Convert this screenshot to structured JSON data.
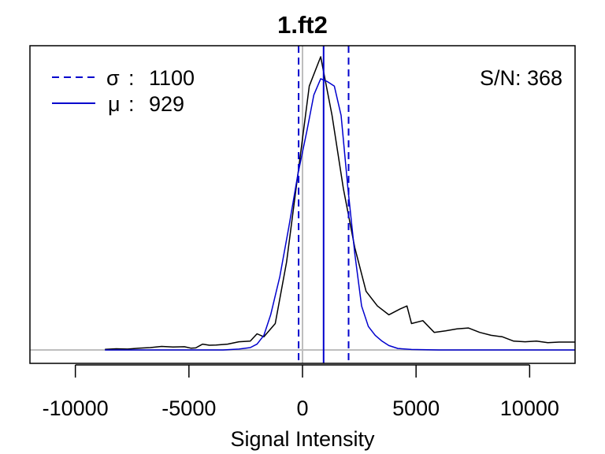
{
  "chart_data": {
    "type": "line",
    "title": "1.ft2",
    "xlabel": "Signal Intensity",
    "ylabel": "",
    "xlim": [
      -12000,
      12000
    ],
    "ylim": [
      -0.03,
      1.0
    ],
    "xticks": [
      -10000,
      -5000,
      0,
      5000,
      10000
    ],
    "xtick_labels": [
      "-10000",
      "-5000",
      "0",
      "5000",
      "10000"
    ],
    "yaxis_drawn": false,
    "grid": false,
    "colors": {
      "density": "#000000",
      "fit": "#0000cd",
      "markers": "#0000cd",
      "zero_line": "#bebebe"
    },
    "series": [
      {
        "color": "#000000",
        "x": [
          -8700,
          -8200,
          -7700,
          -7200,
          -6700,
          -6200,
          -5700,
          -5200,
          -4900,
          -4700,
          -4400,
          -4100,
          -3800,
          -3300,
          -2800,
          -2300,
          -2000,
          -1700,
          -1200,
          -700,
          -200,
          300,
          800,
          1300,
          1800,
          2300,
          2800,
          3300,
          3800,
          4300,
          4600,
          4800,
          5300,
          5800,
          6300,
          6800,
          7300,
          7800,
          8300,
          8800,
          9300,
          9800,
          10300,
          10800,
          11300,
          12000
        ],
        "y": [
          0.002,
          0.004,
          0.003,
          0.006,
          0.008,
          0.012,
          0.01,
          0.011,
          0.006,
          0.007,
          0.02,
          0.016,
          0.017,
          0.02,
          0.028,
          0.03,
          0.055,
          0.045,
          0.09,
          0.3,
          0.6,
          0.9,
          1.0,
          0.8,
          0.55,
          0.35,
          0.2,
          0.15,
          0.12,
          0.14,
          0.15,
          0.09,
          0.1,
          0.06,
          0.065,
          0.072,
          0.075,
          0.06,
          0.05,
          0.045,
          0.03,
          0.028,
          0.03,
          0.025,
          0.027,
          0.027
        ]
      },
      {
        "color": "#0000cd",
        "x": [
          -8700,
          -7000,
          -5000,
          -3500,
          -2800,
          -2300,
          -2000,
          -1700,
          -1400,
          -1000,
          -600,
          -200,
          200,
          500,
          800,
          1100,
          1400,
          1700,
          2000,
          2300,
          2600,
          2900,
          3200,
          3500,
          3800,
          4200,
          4800,
          6000,
          8000,
          12000
        ],
        "y": [
          0.0,
          0.0,
          0.0,
          0.0,
          0.003,
          0.008,
          0.02,
          0.05,
          0.12,
          0.25,
          0.42,
          0.6,
          0.75,
          0.87,
          0.925,
          0.915,
          0.9,
          0.8,
          0.55,
          0.33,
          0.15,
          0.08,
          0.05,
          0.03,
          0.015,
          0.005,
          0.0015,
          0.0,
          0.0,
          0.0
        ]
      }
    ],
    "vlines": {
      "mean": 929,
      "sigma_left": -171,
      "sigma_right": 2029,
      "zero": 0
    },
    "legend": {
      "placement": "top-left",
      "items": [
        {
          "symbol": "σ",
          "sep": ":",
          "value": "1100",
          "style": "dashed"
        },
        {
          "symbol": "μ",
          "sep": ":",
          "value": "929",
          "style": "solid"
        }
      ]
    },
    "annotation": {
      "text": "S/N: 368",
      "placement": "top-right"
    }
  }
}
